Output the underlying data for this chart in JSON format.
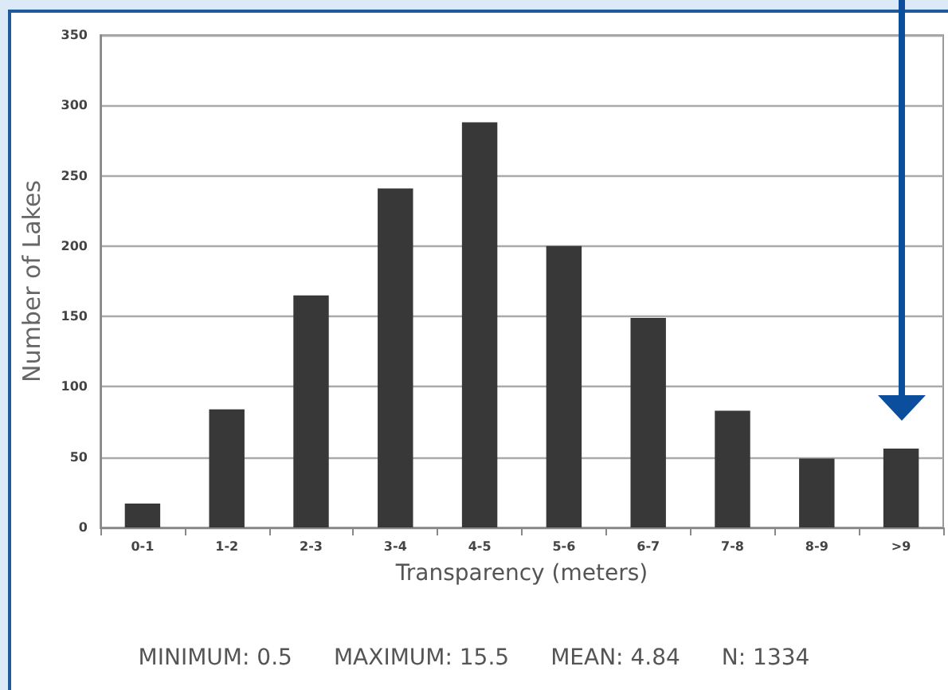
{
  "chart_data": {
    "type": "bar",
    "xlabel": "Transparency (meters)",
    "ylabel": "Number of Lakes",
    "categories": [
      "0-1",
      "1-2",
      "2-3",
      "3-4",
      "4-5",
      "5-6",
      "6-7",
      "7-8",
      "8-9",
      ">9"
    ],
    "values": [
      17,
      84,
      165,
      241,
      288,
      200,
      149,
      83,
      49,
      56
    ],
    "color": "#383838",
    "ylim": [
      0,
      350
    ],
    "yticks": [
      0,
      50,
      100,
      150,
      200,
      250,
      300,
      350
    ],
    "grid": "y",
    "annotations": [
      "MINIMUM: 0.5",
      "MAXIMUM: 15.5",
      "MEAN: 4.84",
      "N: 1334"
    ]
  }
}
